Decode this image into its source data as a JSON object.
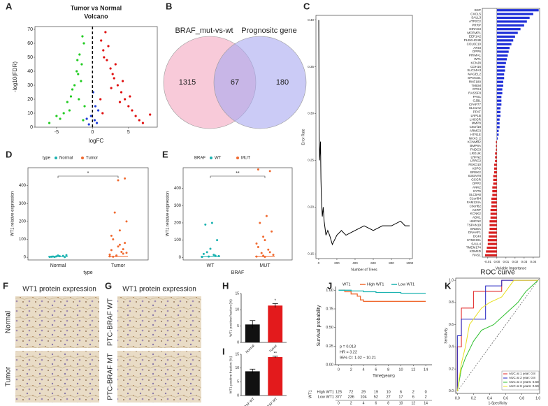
{
  "panel_labels": [
    "A",
    "B",
    "C",
    "D",
    "E",
    "F",
    "G",
    "H",
    "I",
    "J",
    "K"
  ],
  "ihc": {
    "f_title": "WT1 protein expression",
    "g_title": "WT1 protein expression",
    "f_rows": [
      "Normal",
      "Tumor"
    ],
    "g_rows": [
      "PTC-BRAF WT",
      "PTC-BRAF MT"
    ]
  },
  "chart_data": [
    {
      "type": "scatter",
      "title": "Tumor vs Normal",
      "subtitle": "Volcano",
      "xlabel": "logFC",
      "ylabel": "-log10(FDR)",
      "xlim": [
        -8,
        9
      ],
      "ylim": [
        0,
        72
      ],
      "xticks": [
        -5,
        0,
        5
      ],
      "yticks": [
        0,
        10,
        20,
        30,
        40,
        50,
        60,
        70
      ],
      "series": [
        {
          "color": "#22cc22",
          "x": [
            -1.2,
            -1.5,
            -2,
            -2.5,
            -3,
            -1.8,
            -1.1,
            -3.5,
            -4,
            -2.2,
            -1.4,
            -5,
            -2.8,
            -1.6,
            -3.2,
            -1.3,
            -2.1,
            -6,
            -4.5,
            -1.9
          ],
          "y": [
            60,
            45,
            38,
            30,
            22,
            52,
            15,
            18,
            10,
            40,
            65,
            8,
            27,
            33,
            12,
            5,
            48,
            3,
            6,
            20
          ]
        },
        {
          "color": "#1f3fd8",
          "x": [
            -0.5,
            0.3,
            -0.2,
            0.6,
            0.8,
            -0.8,
            0.1,
            0.4
          ],
          "y": [
            2,
            5,
            8,
            3,
            12,
            6,
            25,
            15
          ]
        },
        {
          "color": "#e01010",
          "x": [
            1.2,
            1.5,
            2,
            2.5,
            3,
            3.5,
            4,
            4.5,
            5,
            5.5,
            6,
            1.8,
            2.2,
            2.8,
            3.2,
            1.1,
            1.4,
            6.5,
            7,
            2.6,
            3.8,
            4.2,
            1.6,
            5.2,
            8
          ],
          "y": [
            62,
            55,
            48,
            42,
            35,
            30,
            25,
            20,
            15,
            12,
            8,
            68,
            58,
            38,
            45,
            20,
            10,
            5,
            3,
            28,
            18,
            33,
            50,
            22,
            9
          ]
        }
      ]
    },
    {
      "type": "venn",
      "sets": [
        "BRAF_mut-vs-wt",
        "Prognositc gene"
      ],
      "values": [
        1315,
        67,
        180
      ],
      "colors": [
        "#f4a7c0",
        "#a9a9f0"
      ],
      "label_colors": [
        "#8b2a3a",
        "#3a4ea8"
      ]
    },
    {
      "type": "line",
      "xlabel": "Number of Trees",
      "ylabel": "Error Rate",
      "xlim": [
        -30,
        1030
      ],
      "ylim": [
        0.145,
        0.405
      ],
      "xticks": [
        0,
        200,
        400,
        600,
        800,
        1000
      ],
      "yticks": [
        0.15,
        {
          "value": 0.2,
          "label": "0.20"
        },
        0.25,
        {
          "value": 0.3,
          "label": "0.30"
        },
        0.35,
        {
          "value": 0.4,
          "label": "0.40"
        }
      ],
      "color": "#000000",
      "x": [
        1,
        5,
        10,
        15,
        20,
        25,
        30,
        40,
        50,
        60,
        80,
        100,
        120,
        150,
        200,
        250,
        300,
        400,
        500,
        600,
        700,
        800,
        900,
        950,
        1000
      ],
      "y": [
        0.4,
        0.28,
        0.25,
        0.26,
        0.27,
        0.23,
        0.21,
        0.19,
        0.2,
        0.185,
        0.17,
        0.175,
        0.17,
        0.16,
        0.17,
        0.175,
        0.17,
        0.175,
        0.18,
        0.175,
        0.18,
        0.18,
        0.185,
        0.18,
        0.18
      ]
    },
    {
      "type": "barh",
      "xlabel": "Variable Importance",
      "xlim": [
        -0.016,
        0.047
      ],
      "xticks": [
        -0.01,
        {
          "value": 0,
          "label": "0.00"
        },
        0.01,
        0.02,
        0.03,
        0.04
      ],
      "color_positive": "#1f2fd8",
      "color_negative": "#d81f1f",
      "highlight_index": 13,
      "highlight_color": "#e01010",
      "categories": [
        "BSP",
        "CXCL5",
        "SALL3",
        "ATP2C2",
        "PRRP",
        "DIRAS3",
        "MCEMP1",
        "EEF1A2",
        "PLEKHG4B",
        "COL6C10",
        "ARSI",
        "DPP6",
        "PRIMA1",
        "WT1",
        "KCNJ8",
        "CDH16",
        "SLC24A3",
        "MAGEL2",
        "SPOCD1",
        "RNF180",
        "TMEM",
        "DTX4",
        "RASSF8",
        "PAX1",
        "GJB1",
        "CFAP77",
        "SLC1A2",
        "PPAT",
        "LRP1B",
        "LHCGR",
        "MMP8",
        "C8orf18",
        "ARMC3",
        "HTR1E",
        "NKX3_2",
        "KCNMB2",
        "BMP8A",
        "FNDC3",
        "LRGUK",
        "LRFN2",
        "LRRC2",
        "FBXO10",
        "ASPG",
        "BRSK2",
        "B3GNT8",
        "GCGR",
        "DPP2",
        "ANK2",
        "SYT6",
        "SLC5A8",
        "C1orf94",
        "FAM124A",
        "C8orf82",
        "ASRP",
        "KCNK2",
        "ADK1",
        "HMCN2",
        "TSPAN19",
        "SRD5A",
        "DNAAF1",
        "DGKI",
        "SYNDIG1",
        "SALL4",
        "TMEM174",
        "KDM4D",
        "RAS1"
      ],
      "values": [
        0.046,
        0.04,
        0.036,
        0.033,
        0.03,
        0.026,
        0.023,
        0.02,
        0.018,
        0.016,
        0.014,
        0.013,
        0.012,
        0.011,
        0.01,
        0.009,
        0.009,
        0.008,
        0.008,
        0.007,
        0.007,
        0.006,
        0.006,
        0.005,
        0.005,
        0.005,
        0.004,
        0.004,
        0.004,
        0.003,
        0.003,
        0.003,
        0.002,
        0.002,
        0.001,
        -0.001,
        -0.001,
        -0.001,
        -0.002,
        -0.002,
        -0.002,
        -0.003,
        -0.003,
        -0.003,
        -0.004,
        -0.004,
        -0.004,
        -0.005,
        -0.005,
        -0.005,
        -0.006,
        -0.006,
        -0.006,
        -0.007,
        -0.007,
        -0.007,
        -0.008,
        -0.008,
        -0.008,
        -0.009,
        -0.009,
        -0.01,
        -0.01,
        -0.011,
        -0.012,
        -0.013
      ]
    },
    {
      "type": "strip",
      "legend_title": "type",
      "xlabel": "type",
      "ylabel": "WT1 relative expression",
      "significance": "*",
      "categories": [
        "Normal",
        "Tumor"
      ],
      "ylim": [
        -15,
        500
      ],
      "yticks": [
        0,
        100,
        200,
        300,
        400
      ],
      "series": [
        {
          "name": "Normal",
          "color": "#1ab2b0",
          "values": [
            2,
            5,
            8,
            3,
            10,
            1,
            4,
            6,
            12,
            2
          ]
        },
        {
          "name": "Tumor",
          "color": "#f06a30",
          "values": [
            5,
            10,
            20,
            40,
            60,
            80,
            100,
            150,
            200,
            250,
            30,
            15,
            8,
            45,
            120,
            430,
            440,
            3,
            70,
            25
          ]
        }
      ]
    },
    {
      "type": "strip",
      "legend_title": "BRAF",
      "xlabel": "BRAF",
      "ylabel": "WT1 relative expression",
      "significance": "**",
      "categories": [
        "WT",
        "MUT"
      ],
      "ylim": [
        -15,
        520
      ],
      "yticks": [
        0,
        100,
        200,
        300,
        400
      ],
      "series": [
        {
          "name": "WT",
          "color": "#1ab2b0",
          "values": [
            2,
            5,
            10,
            20,
            50,
            100,
            190,
            200,
            8,
            30,
            15,
            3
          ]
        },
        {
          "name": "MUT",
          "color": "#f06a30",
          "values": [
            5,
            10,
            30,
            60,
            100,
            150,
            200,
            240,
            15,
            25,
            45,
            80,
            120,
            500,
            510,
            3
          ]
        }
      ]
    },
    {
      "type": "bar",
      "ylabel": "WT1 positive fraction (%)",
      "significance": "*",
      "categories": [
        "Normal",
        "Tumor"
      ],
      "values": [
        5.5,
        11.3
      ],
      "errors": [
        1.2,
        0.6
      ],
      "colors": [
        "#111111",
        "#e31a1c"
      ],
      "ylim": [
        0,
        15
      ],
      "yticks": [
        0,
        5,
        10,
        15
      ]
    },
    {
      "type": "bar",
      "ylabel": "WT1 positive fraction (%)",
      "significance": "**",
      "categories": [
        "PTC-BRAF WT",
        "PTC-BRAF MT"
      ],
      "values": [
        8.8,
        14
      ],
      "errors": [
        0.8,
        0.3
      ],
      "colors": [
        "#111111",
        "#e31a1c"
      ],
      "ylim": [
        0,
        15
      ],
      "yticks": [
        0,
        5,
        10,
        15
      ]
    },
    {
      "type": "km",
      "legend_title": "WT1",
      "xlabel": "Time(years)",
      "ylabel": "Survival probability",
      "xlim": [
        -0.5,
        15
      ],
      "ylim": [
        0,
        1.05
      ],
      "xticks": [
        0,
        2,
        4,
        6,
        8,
        10,
        12,
        14
      ],
      "yticks": [
        {
          "value": 0,
          "label": "0.00"
        },
        0.25,
        {
          "value": 0.5,
          "label": "0.50"
        },
        0.75,
        {
          "value": 1,
          "label": "1.00"
        }
      ],
      "annotations": [
        "p = 0.013",
        "HR = 3.22",
        "95% CI: 1.02 − 10.21"
      ],
      "series": [
        {
          "name": "High WT1",
          "color": "#f06a30",
          "x": [
            0,
            1,
            2,
            3,
            3.5,
            4,
            6,
            8,
            10,
            12,
            14
          ],
          "y": [
            1,
            0.98,
            0.95,
            0.92,
            0.87,
            0.85,
            0.85,
            0.85,
            0.85,
            0.85,
            0.85
          ],
          "at_risk": [
            125,
            72,
            29,
            19,
            10,
            6,
            2,
            0
          ]
        },
        {
          "name": "Low WT1",
          "color": "#1ab2b0",
          "x": [
            0,
            2,
            4,
            6,
            8,
            10,
            12,
            14
          ],
          "y": [
            1,
            0.99,
            0.98,
            0.97,
            0.97,
            0.96,
            0.96,
            0.96
          ],
          "at_risk": [
            377,
            236,
            104,
            52,
            27,
            17,
            6,
            2
          ]
        }
      ]
    },
    {
      "type": "roc",
      "title": "ROC curve",
      "xlabel": "1-Specificity",
      "ylabel": "Sensitivity",
      "xlim": [
        -0.02,
        1.02
      ],
      "ylim": [
        -0.02,
        1.02
      ],
      "xticks": [
        {
          "value": 0,
          "label": "0.0"
        },
        0.2,
        0.4,
        0.6,
        0.8,
        {
          "value": 1,
          "label": "1.0"
        }
      ],
      "yticks": [
        {
          "value": 0,
          "label": "0.0"
        },
        0.2,
        0.4,
        0.6,
        0.8,
        {
          "value": 1,
          "label": "1.0"
        }
      ],
      "series": [
        {
          "name": "AUC at 1 year: 0.8",
          "color": "#e02020",
          "x": [
            0,
            0,
            0.05,
            0.05,
            0.2,
            0.2,
            0.55,
            0.55,
            1
          ],
          "y": [
            0,
            0.4,
            0.4,
            0.75,
            0.75,
            0.9,
            0.9,
            1,
            1
          ]
        },
        {
          "name": "AUC at 2 year: 0.8",
          "color": "#2020c0",
          "x": [
            0,
            0,
            0.05,
            0.05,
            0.35,
            0.35,
            0.55,
            0.55,
            1
          ],
          "y": [
            0,
            0.5,
            0.5,
            0.65,
            0.65,
            0.95,
            0.95,
            1,
            1
          ]
        },
        {
          "name": "AUC at 4 years: 0.68",
          "color": "#30c030",
          "x": [
            0,
            0.05,
            0.1,
            0.2,
            0.3,
            0.45,
            0.6,
            0.75,
            0.85,
            1
          ],
          "y": [
            0,
            0.2,
            0.3,
            0.45,
            0.55,
            0.6,
            0.7,
            0.8,
            0.9,
            1
          ]
        },
        {
          "name": "AUC at 8 years: 0.69",
          "color": "#e8e020",
          "x": [
            0,
            0.05,
            0.1,
            0.15,
            0.3,
            0.4,
            0.55,
            0.7,
            1
          ],
          "y": [
            0,
            0.25,
            0.4,
            0.6,
            0.75,
            0.8,
            0.85,
            1,
            1
          ]
        }
      ]
    }
  ]
}
